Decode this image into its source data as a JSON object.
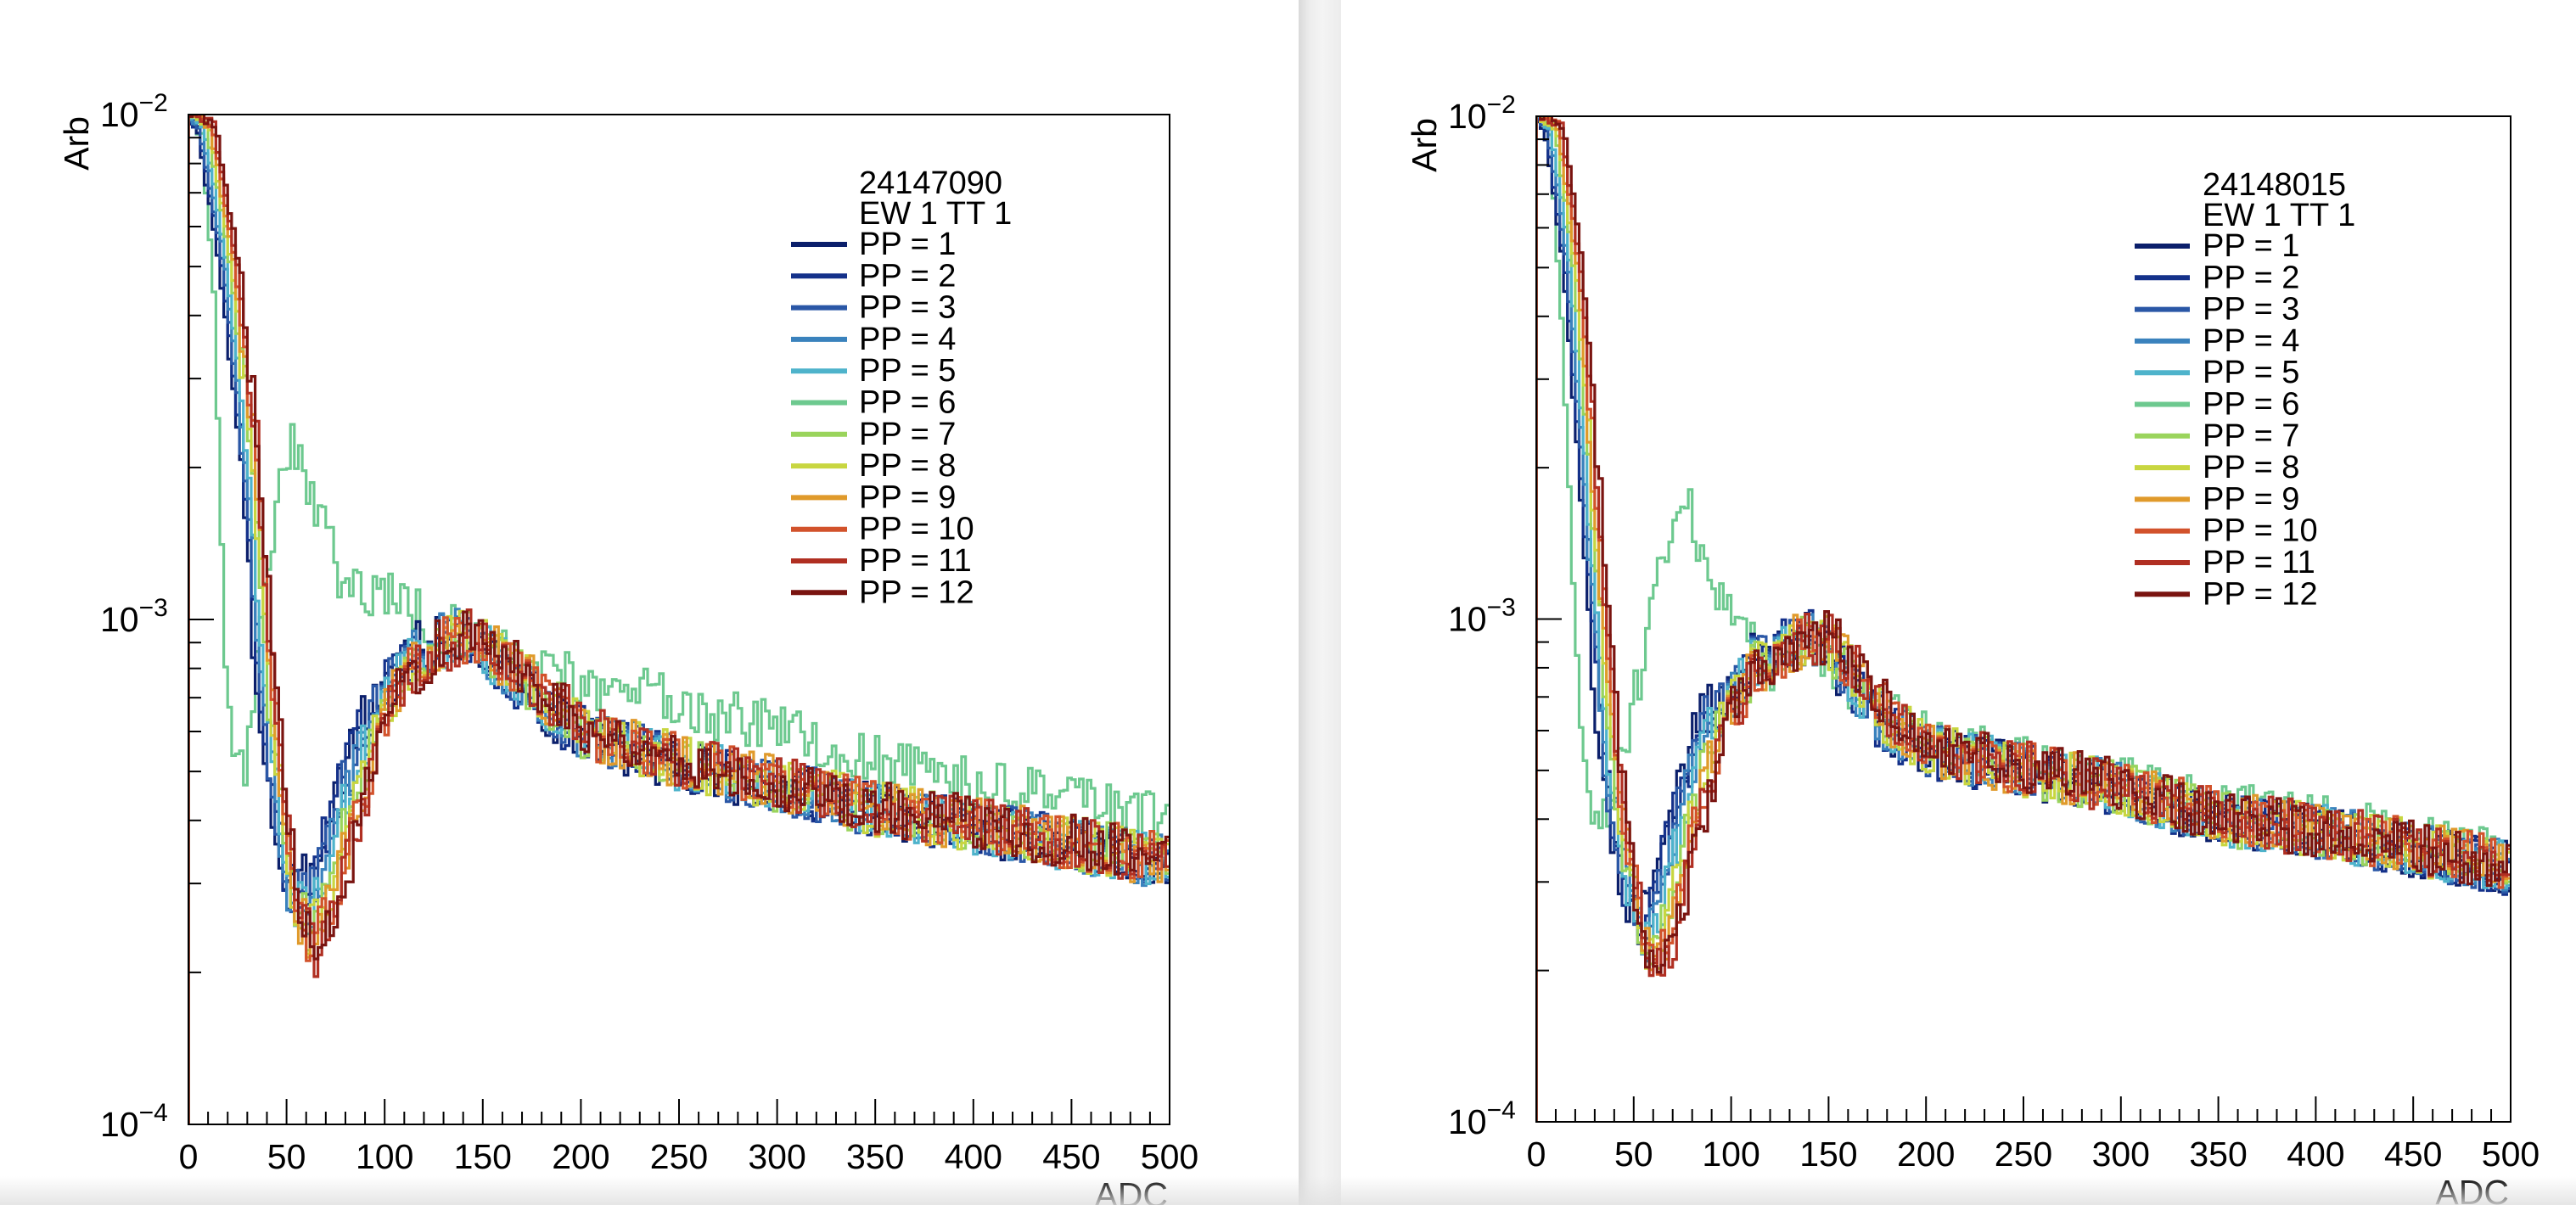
{
  "chart_data": [
    {
      "type": "line",
      "panel": "left",
      "header": [
        "24147090",
        "EW 1 TT 1"
      ],
      "xlabel": "ADC",
      "ylabel": "Arb",
      "xlim": [
        0,
        500
      ],
      "ylim": [
        0.0001,
        0.01
      ],
      "yscale": "log",
      "x_ticks": [
        "0",
        "50",
        "100",
        "150",
        "200",
        "250",
        "300",
        "350",
        "400",
        "450",
        "500"
      ],
      "y_ticks": [
        {
          "base": "10",
          "exp": "−2"
        },
        {
          "base": "10",
          "exp": "−3"
        },
        {
          "base": "10",
          "exp": "−4"
        }
      ],
      "legend_position": "top-right",
      "series": [
        {
          "name": "PP = 1",
          "color": "#0b1f6b"
        },
        {
          "name": "PP = 2",
          "color": "#14318a"
        },
        {
          "name": "PP = 3",
          "color": "#2a57a6"
        },
        {
          "name": "PP = 4",
          "color": "#3a82bd"
        },
        {
          "name": "PP = 5",
          "color": "#4eb3cb"
        },
        {
          "name": "PP = 6",
          "color": "#6dc98f"
        },
        {
          "name": "PP = 7",
          "color": "#9ad45c"
        },
        {
          "name": "PP = 8",
          "color": "#c8d640"
        },
        {
          "name": "PP = 9",
          "color": "#e09a2b"
        },
        {
          "name": "PP = 10",
          "color": "#d2522b"
        },
        {
          "name": "PP = 11",
          "color": "#b02f22"
        },
        {
          "name": "PP = 12",
          "color": "#7a1410"
        }
      ],
      "curves": {
        "base": [
          [
            0,
            0.01
          ],
          [
            8,
            0.0095
          ],
          [
            20,
            0.005
          ],
          [
            30,
            0.0022
          ],
          [
            38,
            0.0008
          ],
          [
            45,
            0.00045
          ],
          [
            52,
            0.00028
          ],
          [
            60,
            0.00025
          ],
          [
            70,
            0.0003
          ],
          [
            85,
            0.00048
          ],
          [
            100,
            0.0007
          ],
          [
            120,
            0.00088
          ],
          [
            140,
            0.00093
          ],
          [
            160,
            0.00082
          ],
          [
            180,
            0.0007
          ],
          [
            200,
            0.0006
          ],
          [
            250,
            0.00052
          ],
          [
            300,
            0.00047
          ],
          [
            350,
            0.00042
          ],
          [
            400,
            0.00039
          ],
          [
            450,
            0.00036
          ],
          [
            500,
            0.00033
          ]
        ],
        "pp6": [
          [
            0,
            0.01
          ],
          [
            6,
            0.009
          ],
          [
            12,
            0.0045
          ],
          [
            18,
            0.0008
          ],
          [
            22,
            0.00055
          ],
          [
            28,
            0.00052
          ],
          [
            35,
            0.0009
          ],
          [
            45,
            0.0019
          ],
          [
            52,
            0.0023
          ],
          [
            60,
            0.0019
          ],
          [
            70,
            0.0014
          ],
          [
            80,
            0.00115
          ],
          [
            100,
            0.00115
          ],
          [
            120,
            0.001
          ],
          [
            140,
            0.00092
          ],
          [
            160,
            0.00085
          ],
          [
            200,
            0.00075
          ],
          [
            250,
            0.00068
          ],
          [
            300,
            0.0006
          ],
          [
            350,
            0.00052
          ],
          [
            400,
            0.00047
          ],
          [
            450,
            0.00043
          ],
          [
            500,
            0.0004
          ]
        ]
      }
    },
    {
      "type": "line",
      "panel": "right",
      "header": [
        "24148015",
        "EW 1 TT 1"
      ],
      "xlabel": "ADC",
      "ylabel": "Arb",
      "xlim": [
        0,
        500
      ],
      "ylim": [
        0.0001,
        0.01
      ],
      "yscale": "log",
      "x_ticks": [
        "0",
        "50",
        "100",
        "150",
        "200",
        "250",
        "300",
        "350",
        "400",
        "450",
        "500"
      ],
      "y_ticks": [
        {
          "base": "10",
          "exp": "−2"
        },
        {
          "base": "10",
          "exp": "−3"
        },
        {
          "base": "10",
          "exp": "−4"
        }
      ],
      "legend_position": "top-right",
      "series": [
        {
          "name": "PP = 1",
          "color": "#0b1f6b"
        },
        {
          "name": "PP = 2",
          "color": "#14318a"
        },
        {
          "name": "PP = 3",
          "color": "#2a57a6"
        },
        {
          "name": "PP = 4",
          "color": "#3a82bd"
        },
        {
          "name": "PP = 5",
          "color": "#4eb3cb"
        },
        {
          "name": "PP = 6",
          "color": "#6dc98f"
        },
        {
          "name": "PP = 7",
          "color": "#9ad45c"
        },
        {
          "name": "PP = 8",
          "color": "#c8d640"
        },
        {
          "name": "PP = 9",
          "color": "#e09a2b"
        },
        {
          "name": "PP = 10",
          "color": "#d2522b"
        },
        {
          "name": "PP = 11",
          "color": "#b02f22"
        },
        {
          "name": "PP = 12",
          "color": "#7a1410"
        }
      ],
      "curves": {
        "base": [
          [
            0,
            0.01
          ],
          [
            8,
            0.0095
          ],
          [
            18,
            0.005
          ],
          [
            25,
            0.0022
          ],
          [
            32,
            0.0009
          ],
          [
            38,
            0.0005
          ],
          [
            45,
            0.00033
          ],
          [
            52,
            0.00024
          ],
          [
            58,
            0.00022
          ],
          [
            65,
            0.00026
          ],
          [
            75,
            0.00038
          ],
          [
            90,
            0.0006
          ],
          [
            110,
            0.0008
          ],
          [
            130,
            0.0009
          ],
          [
            145,
            0.00092
          ],
          [
            160,
            0.00078
          ],
          [
            180,
            0.00062
          ],
          [
            200,
            0.00055
          ],
          [
            250,
            0.0005
          ],
          [
            300,
            0.00046
          ],
          [
            350,
            0.0004
          ],
          [
            400,
            0.00038
          ],
          [
            450,
            0.00035
          ],
          [
            500,
            0.00032
          ]
        ],
        "pp6": [
          [
            0,
            0.01
          ],
          [
            6,
            0.009
          ],
          [
            12,
            0.004
          ],
          [
            18,
            0.0012
          ],
          [
            22,
            0.0006
          ],
          [
            28,
            0.0004
          ],
          [
            35,
            0.0004
          ],
          [
            45,
            0.00055
          ],
          [
            55,
            0.0009
          ],
          [
            65,
            0.0014
          ],
          [
            75,
            0.0017
          ],
          [
            85,
            0.0014
          ],
          [
            95,
            0.0011
          ],
          [
            105,
            0.00092
          ],
          [
            120,
            0.0008
          ],
          [
            140,
            0.00088
          ],
          [
            160,
            0.00075
          ],
          [
            180,
            0.00065
          ],
          [
            200,
            0.00057
          ],
          [
            250,
            0.00052
          ],
          [
            300,
            0.00047
          ],
          [
            350,
            0.00042
          ],
          [
            400,
            0.0004
          ],
          [
            450,
            0.00036
          ],
          [
            500,
            0.00033
          ]
        ]
      }
    }
  ]
}
